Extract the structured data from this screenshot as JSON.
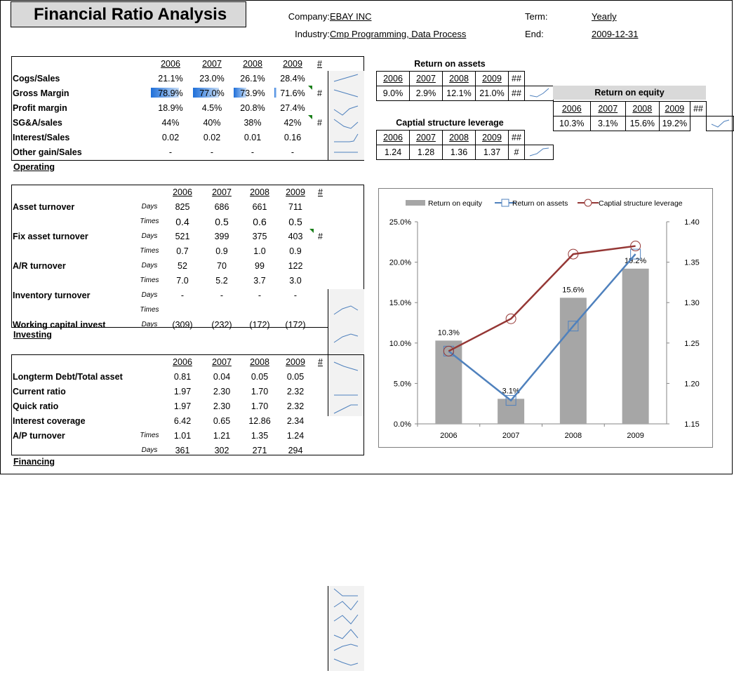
{
  "header": {
    "title": "Financial Ratio Analysis",
    "company_label": "Company:",
    "company_value": "EBAY INC",
    "industry_label": "Industry:",
    "industry_value": "Cmp Programming, Data Process",
    "term_label": "Term:",
    "term_value": "Yearly",
    "end_label": "End:",
    "end_value": "2009-12-31"
  },
  "years": [
    "2006",
    "2007",
    "2008",
    "2009"
  ],
  "hash": "#",
  "dhash": "##",
  "operating": {
    "title": "Operating",
    "rows": [
      {
        "label": "Cogs/Sales",
        "values": [
          "21.1%",
          "23.0%",
          "26.1%",
          "28.4%"
        ]
      },
      {
        "label": "Gross Margin",
        "values": [
          "78.9%",
          "77.0%",
          "73.9%",
          "71.6%"
        ],
        "hash": "#",
        "bars": [
          0.789,
          0.77,
          0.739,
          0.716
        ]
      },
      {
        "label": "Profit margin",
        "values": [
          "18.9%",
          "4.5%",
          "20.8%",
          "27.4%"
        ]
      },
      {
        "label": "SG&A/sales",
        "values": [
          "44%",
          "40%",
          "38%",
          "42%"
        ],
        "hash": "#"
      },
      {
        "label": "Interest/Sales",
        "values": [
          "0.02",
          "0.02",
          "0.01",
          "0.16"
        ]
      },
      {
        "label": "Other gain/Sales",
        "values": [
          "-",
          "-",
          "-",
          "-"
        ]
      }
    ]
  },
  "investing": {
    "title": "Investing",
    "rows": [
      {
        "label": "Asset turnover",
        "unit": "Days",
        "values": [
          "825",
          "686",
          "661",
          "711"
        ]
      },
      {
        "label": "",
        "unit": "Times",
        "values": [
          "0.4",
          "0.5",
          "0.6",
          "0.5"
        ]
      },
      {
        "label": "Fix asset turnover",
        "unit": "Days",
        "values": [
          "521",
          "399",
          "375",
          "403"
        ],
        "hash": "#"
      },
      {
        "label": "",
        "unit": "Times",
        "values": [
          "0.7",
          "0.9",
          "1.0",
          "0.9"
        ]
      },
      {
        "label": "A/R turnover",
        "unit": "Days",
        "values": [
          "52",
          "70",
          "99",
          "122"
        ]
      },
      {
        "label": "",
        "unit": "Times",
        "values": [
          "7.0",
          "5.2",
          "3.7",
          "3.0"
        ]
      },
      {
        "label": "Inventory turnover",
        "unit": "Days",
        "values": [
          "-",
          "-",
          "-",
          "-"
        ]
      },
      {
        "label": "",
        "unit": "Times",
        "values": [
          "",
          "",
          "",
          ""
        ]
      },
      {
        "label": "Working capital invest",
        "unit": "Days",
        "values": [
          "(309)",
          "(232)",
          "(172)",
          "(172)"
        ]
      }
    ]
  },
  "financing": {
    "title": "Financing",
    "rows": [
      {
        "label": "Longterm Debt/Total asset",
        "unit": "",
        "values": [
          "0.81",
          "0.04",
          "0.05",
          "0.05"
        ]
      },
      {
        "label": "Current ratio",
        "unit": "",
        "values": [
          "1.97",
          "2.30",
          "1.70",
          "2.32"
        ]
      },
      {
        "label": "Quick ratio",
        "unit": "",
        "values": [
          "1.97",
          "2.30",
          "1.70",
          "2.32"
        ]
      },
      {
        "label": "Interest coverage",
        "unit": "",
        "values": [
          "6.42",
          "0.65",
          "12.86",
          "2.34"
        ]
      },
      {
        "label": "A/P turnover",
        "unit": "Times",
        "values": [
          "1.01",
          "1.21",
          "1.35",
          "1.24"
        ]
      },
      {
        "label": "",
        "unit": "Days",
        "values": [
          "361",
          "302",
          "271",
          "294"
        ]
      }
    ]
  },
  "roa": {
    "title": "Return on assets",
    "values": [
      "9.0%",
      "2.9%",
      "12.1%",
      "21.0%"
    ]
  },
  "roe": {
    "title": "Return on equity",
    "values": [
      "10.3%",
      "3.1%",
      "15.6%",
      "19.2%"
    ]
  },
  "csl": {
    "title": "Captial structure leverage",
    "values": [
      "1.24",
      "1.28",
      "1.36",
      "1.37"
    ]
  },
  "chart_data": {
    "type": "bar",
    "categories": [
      "2006",
      "2007",
      "2008",
      "2009"
    ],
    "series": [
      {
        "name": "Return on equity",
        "type": "bar",
        "axis": "left",
        "values": [
          10.3,
          3.1,
          15.6,
          19.2
        ],
        "labels": [
          "10.3%",
          "3.1%",
          "15.6%",
          "19.2%"
        ],
        "color": "#a6a6a6"
      },
      {
        "name": "Return on assets",
        "type": "line",
        "axis": "left",
        "values": [
          9.0,
          2.9,
          12.1,
          21.0
        ],
        "color": "#4f81bd"
      },
      {
        "name": "Captial structure leverage",
        "type": "line",
        "axis": "right",
        "values": [
          1.24,
          1.28,
          1.36,
          1.37
        ],
        "color": "#953735"
      }
    ],
    "ylim_left": [
      0,
      25
    ],
    "ylim_right": [
      1.15,
      1.4
    ],
    "yticks_left": [
      "0.0%",
      "5.0%",
      "10.0%",
      "15.0%",
      "20.0%",
      "25.0%"
    ],
    "yticks_right": [
      "1.15",
      "1.20",
      "1.25",
      "1.30",
      "1.35",
      "1.40"
    ],
    "legend": "top",
    "grid": false
  }
}
